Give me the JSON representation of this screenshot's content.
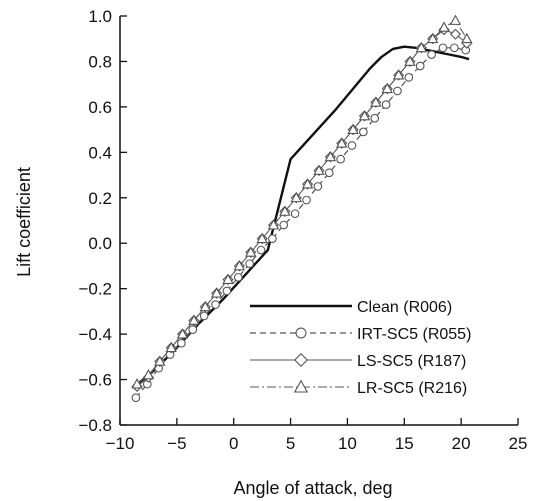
{
  "chart_data": {
    "type": "line",
    "xlabel": "Angle of attack, deg",
    "ylabel": "Lift coefficient",
    "xlim": [
      -10,
      25
    ],
    "ylim": [
      -0.8,
      1.0
    ],
    "xticks": [
      -10,
      -5,
      0,
      5,
      10,
      15,
      20,
      25
    ],
    "yticks": [
      -0.8,
      -0.6,
      -0.4,
      -0.2,
      0.0,
      0.2,
      0.4,
      0.6,
      0.8,
      1.0
    ],
    "xtick_labels": [
      "−10",
      "−5",
      "0",
      "5",
      "10",
      "15",
      "20",
      "25"
    ],
    "ytick_labels": [
      "−0.8",
      "−0.6",
      "−0.4",
      "−0.2",
      "0.0",
      "0.2",
      "0.4",
      "0.6",
      "0.8",
      "1.0"
    ],
    "grid": false,
    "legend_position": "bottom-right",
    "series": [
      {
        "name": "Clean (R006)",
        "style": "solid-thick",
        "marker": "none",
        "color": "#111111",
        "x": [
          -8.7,
          -7,
          -5,
          -3,
          -1,
          1,
          3,
          5,
          7,
          9,
          10,
          11,
          12,
          13,
          14,
          15,
          16,
          17,
          18,
          19,
          20,
          20.7
        ],
        "y": [
          -0.63,
          -0.56,
          -0.46,
          -0.35,
          -0.25,
          -0.14,
          -0.03,
          0.37,
          0.48,
          0.59,
          0.65,
          0.71,
          0.77,
          0.82,
          0.855,
          0.865,
          0.86,
          0.85,
          0.84,
          0.83,
          0.82,
          0.81
        ]
      },
      {
        "name": "IRT-SC5 (R055)",
        "style": "dashed",
        "marker": "circle",
        "color": "#555555",
        "x": [
          -8.6,
          -7.6,
          -6.6,
          -5.6,
          -4.6,
          -3.6,
          -2.6,
          -1.6,
          -0.6,
          0.4,
          1.4,
          2.4,
          3.4,
          4.4,
          5.4,
          6.4,
          7.4,
          8.4,
          9.4,
          10.4,
          11.4,
          12.4,
          13.4,
          14.4,
          15.4,
          16.4,
          17.4,
          18.4,
          19.4,
          20.4
        ],
        "y": [
          -0.68,
          -0.62,
          -0.55,
          -0.49,
          -0.44,
          -0.38,
          -0.32,
          -0.27,
          -0.21,
          -0.15,
          -0.09,
          -0.03,
          0.02,
          0.08,
          0.13,
          0.19,
          0.25,
          0.31,
          0.37,
          0.43,
          0.49,
          0.55,
          0.61,
          0.67,
          0.73,
          0.78,
          0.83,
          0.86,
          0.86,
          0.85
        ]
      },
      {
        "name": "LS-SC5 (R187)",
        "style": "solid-thin",
        "marker": "diamond",
        "color": "#555555",
        "x": [
          -8.5,
          -7.5,
          -6.5,
          -5.5,
          -4.5,
          -3.5,
          -2.5,
          -1.5,
          -0.5,
          0.5,
          1.5,
          2.5,
          3.5,
          4.5,
          5.5,
          6.5,
          7.5,
          8.5,
          9.5,
          10.5,
          11.5,
          12.5,
          13.5,
          14.5,
          15.5,
          16.5,
          17.5,
          18.5,
          19.5,
          20.5
        ],
        "y": [
          -0.63,
          -0.59,
          -0.52,
          -0.46,
          -0.4,
          -0.34,
          -0.28,
          -0.22,
          -0.16,
          -0.1,
          -0.04,
          0.02,
          0.08,
          0.14,
          0.2,
          0.26,
          0.32,
          0.38,
          0.44,
          0.5,
          0.56,
          0.62,
          0.68,
          0.74,
          0.8,
          0.86,
          0.9,
          0.94,
          0.92,
          0.88
        ]
      },
      {
        "name": "LR-SC5 (R216)",
        "style": "dash-dot",
        "marker": "triangle",
        "color": "#555555",
        "x": [
          -8.5,
          -7.5,
          -6.5,
          -5.5,
          -4.5,
          -3.5,
          -2.5,
          -1.5,
          -0.5,
          0.5,
          1.5,
          2.5,
          3.5,
          4.5,
          5.5,
          6.5,
          7.5,
          8.5,
          9.5,
          10.5,
          11.5,
          12.5,
          13.5,
          14.5,
          15.5,
          16.5,
          17.5,
          18.5,
          19.5,
          20.5
        ],
        "y": [
          -0.62,
          -0.58,
          -0.52,
          -0.46,
          -0.4,
          -0.34,
          -0.28,
          -0.22,
          -0.16,
          -0.1,
          -0.04,
          0.02,
          0.08,
          0.14,
          0.2,
          0.26,
          0.32,
          0.38,
          0.44,
          0.5,
          0.56,
          0.62,
          0.68,
          0.74,
          0.8,
          0.86,
          0.9,
          0.95,
          0.98,
          0.9
        ]
      }
    ]
  }
}
